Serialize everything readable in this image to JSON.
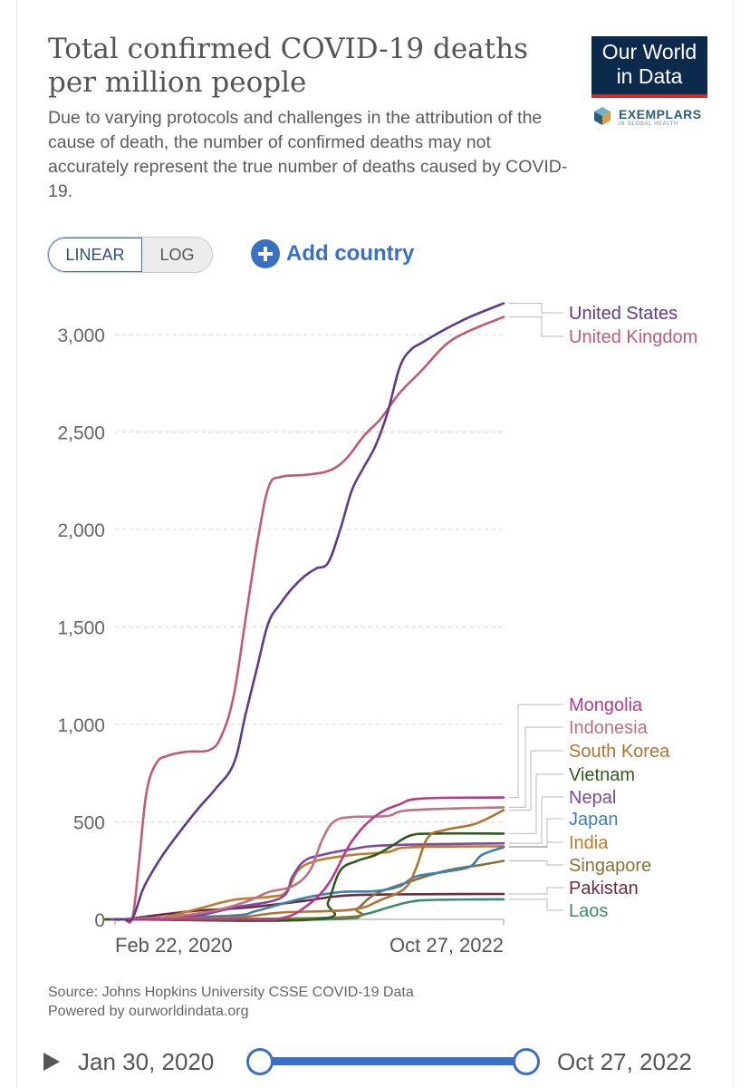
{
  "header": {
    "title": "Total confirmed COVID-19 deaths per million people",
    "subtitle": "Due to varying protocols and challenges in the attribution of the cause of death, the number of confirmed deaths may not accurately represent the true number of deaths caused by COVID-19.",
    "logo_line1": "Our World",
    "logo_line2": "in Data",
    "exemplars_label": "EXEMPLARS",
    "exemplars_sub": "IN GLOBAL HEALTH"
  },
  "controls": {
    "linear_label": "LINEAR",
    "log_label": "LOG",
    "scale_selected": "LINEAR",
    "add_country_label": "Add country"
  },
  "footer": {
    "source": "Source: Johns Hopkins University CSSE COVID-19 Data",
    "powered": "Powered by ourworldindata.org"
  },
  "timeline": {
    "start_label": "Jan 30, 2020",
    "end_label": "Oct 27, 2022"
  },
  "colors": {
    "accent": "#3a70c2",
    "logo_bg": "#0b2a4c",
    "logo_bar": "#c7312c"
  },
  "chart_data": {
    "type": "line",
    "title": "Total confirmed COVID-19 deaths per million people",
    "x_tick_labels": [
      "Feb 22, 2020",
      "Oct 27, 2022"
    ],
    "x_range": [
      "2020-01-30",
      "2022-10-27"
    ],
    "ylim": [
      0,
      3000
    ],
    "y_ticks": [
      0,
      500,
      1000,
      1500,
      2000,
      2500,
      3000
    ],
    "y_tick_labels": [
      "0",
      "500",
      "1,000",
      "1,500",
      "2,000",
      "2,500",
      "3,000"
    ],
    "grid": true,
    "scale": "linear",
    "legend": "right",
    "series": [
      {
        "name": "United States",
        "color": "#5d3a8c",
        "points": [
          [
            "2020-02-22",
            0
          ],
          [
            "2020-03-15",
            5
          ],
          [
            "2020-04-10",
            150
          ],
          [
            "2020-05-01",
            230
          ],
          [
            "2020-06-01",
            330
          ],
          [
            "2020-07-15",
            450
          ],
          [
            "2020-09-01",
            570
          ],
          [
            "2020-10-15",
            670
          ],
          [
            "2020-12-01",
            800
          ],
          [
            "2020-12-31",
            1050
          ],
          [
            "2021-01-31",
            1300
          ],
          [
            "2021-02-28",
            1520
          ],
          [
            "2021-03-31",
            1620
          ],
          [
            "2021-05-01",
            1700
          ],
          [
            "2021-06-01",
            1760
          ],
          [
            "2021-07-01",
            1800
          ],
          [
            "2021-08-01",
            1830
          ],
          [
            "2021-09-01",
            2000
          ],
          [
            "2021-10-01",
            2200
          ],
          [
            "2021-11-01",
            2320
          ],
          [
            "2021-12-01",
            2430
          ],
          [
            "2022-01-01",
            2600
          ],
          [
            "2022-02-01",
            2830
          ],
          [
            "2022-03-01",
            2920
          ],
          [
            "2022-04-01",
            2960
          ],
          [
            "2022-06-01",
            3030
          ],
          [
            "2022-08-01",
            3090
          ],
          [
            "2022-10-27",
            3160
          ]
        ]
      },
      {
        "name": "United Kingdom",
        "color": "#c05b74",
        "points": [
          [
            "2020-02-22",
            0
          ],
          [
            "2020-03-15",
            10
          ],
          [
            "2020-04-01",
            300
          ],
          [
            "2020-04-20",
            650
          ],
          [
            "2020-05-15",
            800
          ],
          [
            "2020-06-15",
            840
          ],
          [
            "2020-08-01",
            860
          ],
          [
            "2020-10-01",
            870
          ],
          [
            "2020-11-01",
            950
          ],
          [
            "2020-12-01",
            1150
          ],
          [
            "2021-01-01",
            1550
          ],
          [
            "2021-02-01",
            1950
          ],
          [
            "2021-03-01",
            2220
          ],
          [
            "2021-04-01",
            2270
          ],
          [
            "2021-06-01",
            2280
          ],
          [
            "2021-08-01",
            2300
          ],
          [
            "2021-09-15",
            2360
          ],
          [
            "2021-11-01",
            2480
          ],
          [
            "2021-12-15",
            2570
          ],
          [
            "2022-02-01",
            2700
          ],
          [
            "2022-04-01",
            2820
          ],
          [
            "2022-06-01",
            2950
          ],
          [
            "2022-08-01",
            3020
          ],
          [
            "2022-10-27",
            3090
          ]
        ]
      },
      {
        "name": "Mongolia",
        "color": "#b53a8c",
        "points": [
          [
            "2020-02-22",
            0
          ],
          [
            "2021-01-01",
            0
          ],
          [
            "2021-04-01",
            5
          ],
          [
            "2021-06-01",
            60
          ],
          [
            "2021-08-01",
            180
          ],
          [
            "2021-10-01",
            400
          ],
          [
            "2021-12-01",
            530
          ],
          [
            "2022-02-01",
            590
          ],
          [
            "2022-04-01",
            620
          ],
          [
            "2022-10-27",
            625
          ]
        ]
      },
      {
        "name": "Indonesia",
        "color": "#c0707f",
        "points": [
          [
            "2020-02-22",
            0
          ],
          [
            "2020-06-01",
            10
          ],
          [
            "2020-10-01",
            40
          ],
          [
            "2021-01-01",
            90
          ],
          [
            "2021-03-01",
            140
          ],
          [
            "2021-05-01",
            170
          ],
          [
            "2021-06-15",
            250
          ],
          [
            "2021-07-15",
            400
          ],
          [
            "2021-08-15",
            500
          ],
          [
            "2021-10-01",
            525
          ],
          [
            "2022-01-01",
            530
          ],
          [
            "2022-03-01",
            560
          ],
          [
            "2022-10-27",
            575
          ]
        ]
      },
      {
        "name": "South Korea",
        "color": "#b0732e",
        "points": [
          [
            "2020-02-22",
            0
          ],
          [
            "2020-04-01",
            4
          ],
          [
            "2020-12-01",
            10
          ],
          [
            "2021-04-01",
            35
          ],
          [
            "2021-10-01",
            50
          ],
          [
            "2021-12-15",
            100
          ],
          [
            "2022-02-15",
            160
          ],
          [
            "2022-03-15",
            260
          ],
          [
            "2022-04-15",
            420
          ],
          [
            "2022-06-01",
            460
          ],
          [
            "2022-08-15",
            490
          ],
          [
            "2022-10-27",
            560
          ]
        ]
      },
      {
        "name": "Vietnam",
        "color": "#2e5a1f",
        "points": [
          [
            "2020-02-22",
            0
          ],
          [
            "2021-07-01",
            0
          ],
          [
            "2021-08-01",
            90
          ],
          [
            "2021-09-01",
            250
          ],
          [
            "2021-10-15",
            300
          ],
          [
            "2021-12-01",
            330
          ],
          [
            "2022-01-15",
            380
          ],
          [
            "2022-03-01",
            430
          ],
          [
            "2022-05-01",
            440
          ],
          [
            "2022-10-27",
            440
          ]
        ]
      },
      {
        "name": "Nepal",
        "color": "#7b4aa0",
        "points": [
          [
            "2020-02-22",
            0
          ],
          [
            "2020-06-01",
            2
          ],
          [
            "2020-09-01",
            20
          ],
          [
            "2020-12-01",
            60
          ],
          [
            "2021-04-01",
            110
          ],
          [
            "2021-05-01",
            220
          ],
          [
            "2021-06-01",
            300
          ],
          [
            "2021-07-15",
            330
          ],
          [
            "2021-10-01",
            360
          ],
          [
            "2022-01-01",
            380
          ],
          [
            "2022-10-27",
            390
          ]
        ]
      },
      {
        "name": "Japan",
        "color": "#3f7fae",
        "points": [
          [
            "2020-02-22",
            0
          ],
          [
            "2020-05-01",
            8
          ],
          [
            "2020-12-01",
            20
          ],
          [
            "2021-02-01",
            45
          ],
          [
            "2021-06-01",
            110
          ],
          [
            "2021-09-01",
            140
          ],
          [
            "2021-12-01",
            145
          ],
          [
            "2022-02-01",
            170
          ],
          [
            "2022-03-15",
            220
          ],
          [
            "2022-06-01",
            245
          ],
          [
            "2022-08-01",
            270
          ],
          [
            "2022-09-01",
            330
          ],
          [
            "2022-10-27",
            370
          ]
        ]
      },
      {
        "name": "India",
        "color": "#c07a28",
        "points": [
          [
            "2020-02-22",
            0
          ],
          [
            "2020-06-01",
            10
          ],
          [
            "2020-09-01",
            55
          ],
          [
            "2020-12-01",
            100
          ],
          [
            "2021-03-01",
            115
          ],
          [
            "2021-04-15",
            140
          ],
          [
            "2021-05-15",
            250
          ],
          [
            "2021-07-01",
            300
          ],
          [
            "2021-10-01",
            330
          ],
          [
            "2022-01-01",
            345
          ],
          [
            "2022-03-01",
            370
          ],
          [
            "2022-10-27",
            375
          ]
        ]
      },
      {
        "name": "Singapore",
        "color": "#8a7235",
        "points": [
          [
            "2020-02-22",
            0
          ],
          [
            "2021-09-01",
            10
          ],
          [
            "2021-10-15",
            55
          ],
          [
            "2021-12-01",
            130
          ],
          [
            "2022-03-01",
            195
          ],
          [
            "2022-06-01",
            250
          ],
          [
            "2022-09-01",
            280
          ],
          [
            "2022-10-27",
            300
          ]
        ]
      },
      {
        "name": "Pakistan",
        "color": "#6e2b3f",
        "points": [
          [
            "2020-02-22",
            0
          ],
          [
            "2020-06-01",
            25
          ],
          [
            "2020-09-01",
            45
          ],
          [
            "2021-01-01",
            60
          ],
          [
            "2021-06-01",
            95
          ],
          [
            "2021-09-01",
            120
          ],
          [
            "2022-01-01",
            128
          ],
          [
            "2022-10-27",
            130
          ]
        ]
      },
      {
        "name": "Laos",
        "color": "#3c8c6c",
        "points": [
          [
            "2020-02-22",
            0
          ],
          [
            "2021-08-01",
            0
          ],
          [
            "2021-11-01",
            25
          ],
          [
            "2022-01-01",
            60
          ],
          [
            "2022-03-01",
            90
          ],
          [
            "2022-05-01",
            100
          ],
          [
            "2022-10-27",
            103
          ]
        ]
      }
    ],
    "label_order": [
      "United States",
      "United Kingdom",
      "Mongolia",
      "Indonesia",
      "South Korea",
      "Vietnam",
      "Nepal",
      "Japan",
      "India",
      "Singapore",
      "Pakistan",
      "Laos"
    ]
  }
}
